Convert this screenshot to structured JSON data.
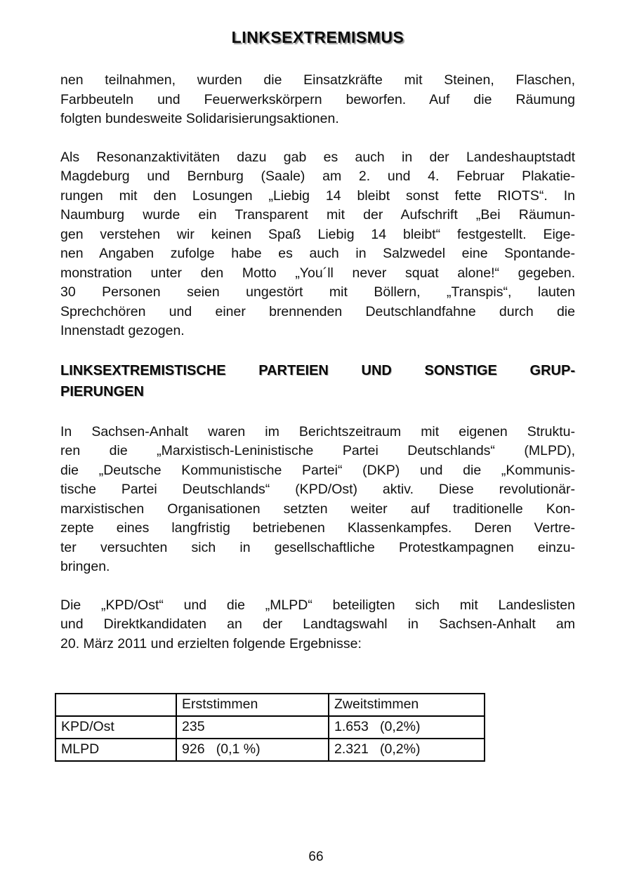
{
  "header": {
    "title": "LINKSEXTREMISMUS"
  },
  "content": {
    "paragraph1": {
      "lines": [
        "nen teilnahmen, wurden die Einsatzkräfte mit Steinen, Flaschen,",
        "Farbbeuteln und Feuerwerkskörpern beworfen. Auf die Räumung",
        "folgten bundesweite Solidarisierungsaktionen."
      ]
    },
    "paragraph2": {
      "lines": [
        "Als Resonanzaktivitäten dazu gab es auch in der Landeshauptstadt",
        "Magdeburg und Bernburg (Saale) am 2. und 4. Februar Plakatie-",
        "rungen mit den Losungen „Liebig 14 bleibt sonst fette RIOTS“. In",
        "Naumburg wurde ein Transparent mit der Aufschrift „Bei Räumun-",
        "gen verstehen wir keinen Spaß Liebig 14 bleibt“ festgestellt. Eige-",
        "nen Angaben zufolge habe es auch in Salzwedel eine Spontande-",
        "monstration unter den Motto „You´ll never squat alone!“ gegeben.",
        "30 Personen seien ungestört mit Böllern, „Transpis“, lauten",
        "Sprechchören und einer brennenden Deutschlandfahne durch die",
        "Innenstadt gezogen."
      ]
    },
    "section_heading": {
      "line1": "LINKSEXTREMISTISCHE PARTEIEN UND SONSTIGE GRUP-",
      "line2": "PIERUNGEN"
    },
    "paragraph3": {
      "lines": [
        "In Sachsen-Anhalt waren im Berichtszeitraum mit eigenen Struktu-",
        "ren die „Marxistisch-Leninistische Partei Deutschlands“ (MLPD),",
        "die „Deutsche Kommunistische Partei“ (DKP) und die „Kommunis-",
        "tische Partei Deutschlands“ (KPD/Ost) aktiv. Diese revolutionär-",
        "marxistischen Organisationen setzten weiter auf traditionelle Kon-",
        "zepte eines langfristig betriebenen Klassenkampfes. Deren Vertre-",
        "ter versuchten sich in gesellschaftliche Protestkampagnen einzu-",
        "bringen."
      ]
    },
    "paragraph4": {
      "lines": [
        "Die „KPD/Ost“ und die „MLPD“ beteiligten sich mit Landeslisten",
        "und Direktkandidaten an der Landtagswahl in Sachsen-Anhalt am",
        "20. März 2011 und erzielten folgende Ergebnisse:"
      ]
    }
  },
  "table": {
    "headers": {
      "label": "",
      "erststimmen": "Erststimmen",
      "zweitstimmen": "Zweitstimmen"
    },
    "rows": [
      {
        "label": "KPD/Ost",
        "erststimmen": "235",
        "zweitstimmen": "1.653   (0,2%)"
      },
      {
        "label": "MLPD",
        "erststimmen": "926   (0,1 %)",
        "zweitstimmen": "2.321   (0,2%)"
      }
    ]
  },
  "footer": {
    "page_number": "66"
  }
}
